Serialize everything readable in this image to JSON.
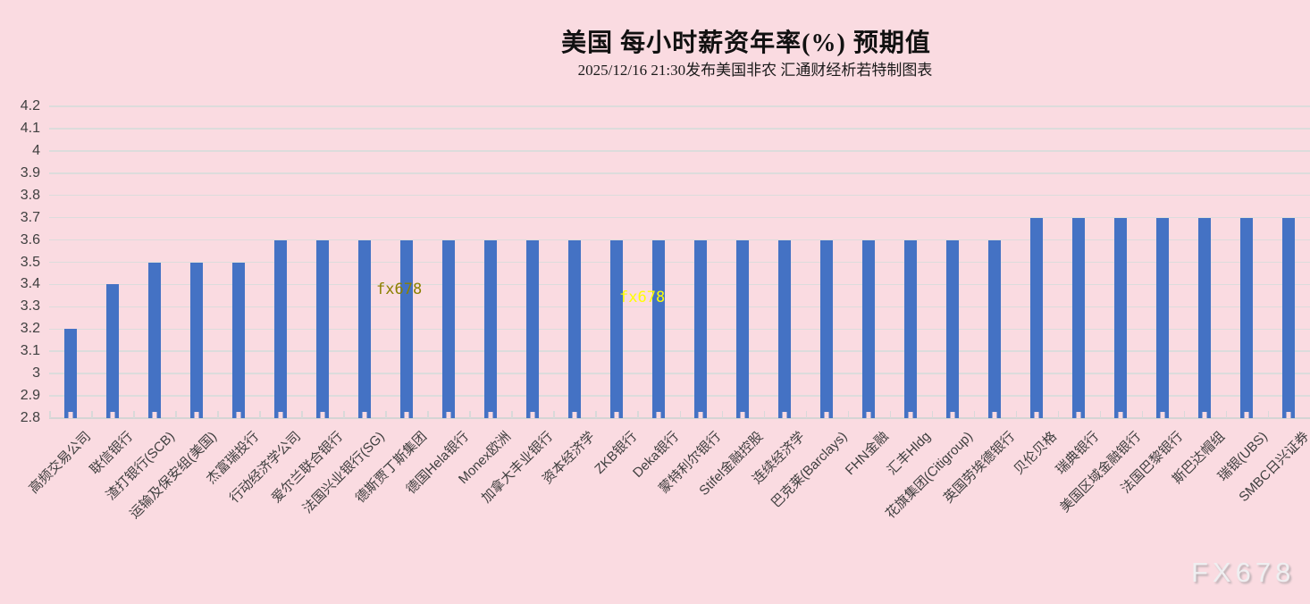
{
  "title": "美国 每小时薪资年率(%) 预期值",
  "subtitle": "2025/12/16 21:30发布美国非农 汇通财经析若特制图表",
  "watermarks": {
    "inner1": {
      "text": "fx678",
      "color": "#8b8000"
    },
    "inner2": {
      "text": "fx678",
      "color": "#ffff00"
    },
    "corner": {
      "text": "FX678"
    }
  },
  "chart_data": {
    "type": "bar",
    "title": "美国 每小时薪资年率(%) 预期值",
    "subtitle": "2025/12/16 21:30发布美国非农 汇通财经析若特制图表",
    "categories": [
      "高频交易公司",
      "联信银行",
      "渣打银行(SCB)",
      "运输及保安组(美国)",
      "杰富瑞投行",
      "行动经济学公司",
      "爱尔兰联合银行",
      "法国兴业银行(SG)",
      "德斯贾丁斯集团",
      "德国Hela银行",
      "Monex欧洲",
      "加拿大丰业银行",
      "资本经济学",
      "ZKB银行",
      "Deka银行",
      "蒙特利尔银行",
      "Stifel金融控股",
      "连续经济学",
      "巴克莱(Barclays)",
      "FHN金融",
      "汇丰Hldg",
      "花旗集团(Citigroup)",
      "英国劳埃德银行",
      "贝伦贝格",
      "瑞典银行",
      "美国区域金融银行",
      "法国巴黎银行",
      "斯巴达帽组",
      "瑞银(UBS)",
      "SMBC日兴证券"
    ],
    "values": [
      3.2,
      3.4,
      3.5,
      3.5,
      3.5,
      3.6,
      3.6,
      3.6,
      3.6,
      3.6,
      3.6,
      3.6,
      3.6,
      3.6,
      3.6,
      3.6,
      3.6,
      3.6,
      3.6,
      3.6,
      3.6,
      3.6,
      3.6,
      3.7,
      3.7,
      3.7,
      3.7,
      3.7,
      3.7,
      3.7
    ],
    "xlabel": "",
    "ylabel": "",
    "ylim": [
      2.8,
      4.2
    ],
    "ytick_step": 0.1,
    "yticks": [
      "4.2",
      "4.1",
      "4",
      "3.9",
      "3.8",
      "3.7",
      "3.6",
      "3.5",
      "3.4",
      "3.3",
      "3.2",
      "3.1",
      "3",
      "2.9",
      "2.8"
    ],
    "grid": true,
    "legend": "none",
    "bar_color": "#4472c4",
    "background": "#fadbe1",
    "gridline_color": "#dcdcdc"
  }
}
